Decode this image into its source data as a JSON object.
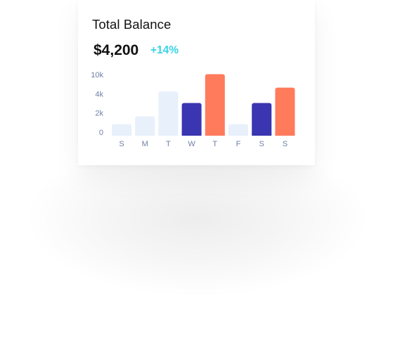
{
  "card": {
    "title": "Total Balance",
    "amount": "$4,200",
    "change": "+14%"
  },
  "colors": {
    "light": "#e8f0fb",
    "dark": "#3a35b0",
    "accent": "#ff7b5c",
    "positive": "#39d3e8"
  },
  "chart_data": {
    "type": "bar",
    "title": "",
    "xlabel": "",
    "ylabel": "",
    "categories": [
      "S",
      "M",
      "T",
      "W",
      "T",
      "F",
      "S",
      "S"
    ],
    "values": [
      0.6,
      1.0,
      2.3,
      1.7,
      3.2,
      0.6,
      1.7,
      2.5
    ],
    "bar_colors": [
      "light",
      "light",
      "light",
      "dark",
      "accent",
      "light",
      "dark",
      "accent"
    ],
    "y_ticks": [
      {
        "label": "0",
        "value": 0
      },
      {
        "label": "2k",
        "value": 1
      },
      {
        "label": "4k",
        "value": 2
      },
      {
        "label": "10k",
        "value": 3
      }
    ],
    "ylim": [
      0,
      3
    ],
    "grid": false,
    "legend": "none"
  }
}
